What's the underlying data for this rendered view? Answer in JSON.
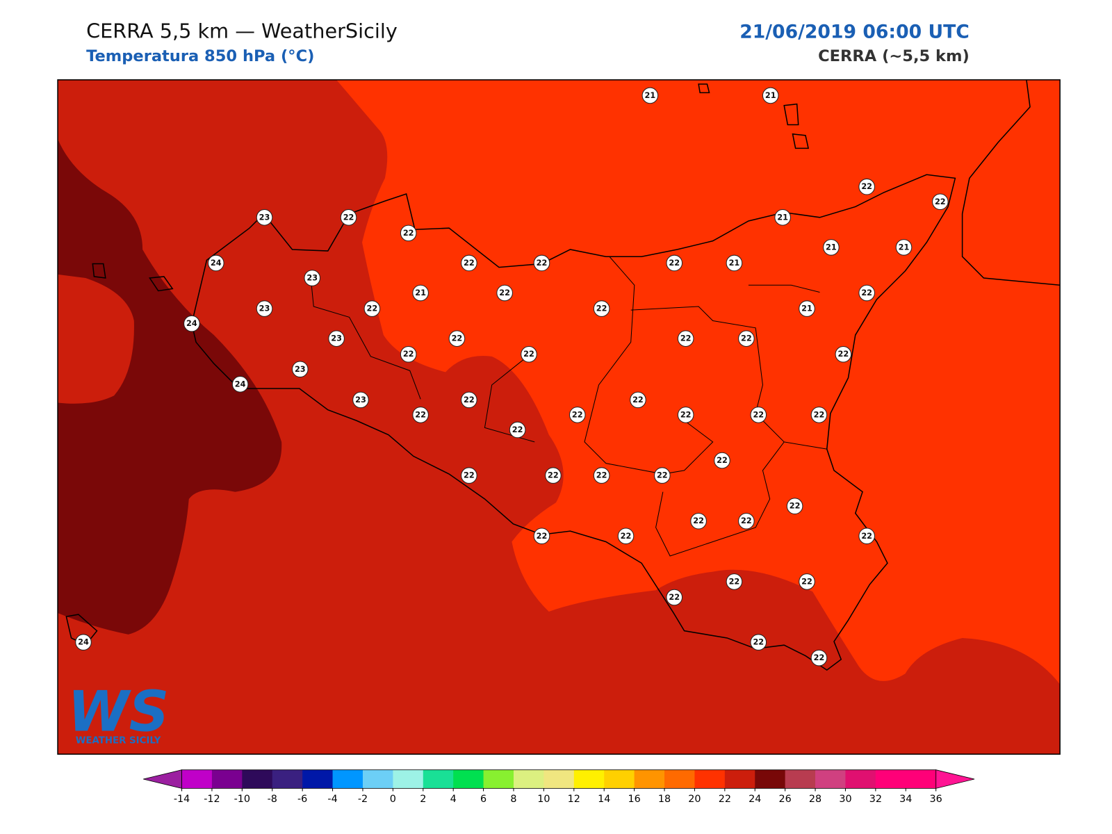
{
  "header": {
    "title": "CERRA 5,5 km — WeatherSicily",
    "subtitle": "Temperatura 850 hPa (°C)",
    "date": "21/06/2019 06:00 UTC",
    "source": "CERRA (~5,5 km)"
  },
  "stations": [
    21,
    21,
    22,
    22,
    23,
    22,
    22,
    21,
    24,
    22,
    22,
    22,
    21,
    21,
    21,
    23,
    21,
    22,
    22,
    23,
    22,
    22,
    21,
    24,
    23,
    22,
    22,
    22,
    22,
    22,
    22,
    23,
    24,
    23,
    22,
    22,
    22,
    22,
    22,
    22,
    22,
    22,
    22,
    22,
    22,
    22,
    22,
    22,
    22,
    22,
    22,
    22,
    22,
    22,
    22,
    22,
    22,
    22,
    24
  ],
  "colorbar": {
    "ticks": [
      -14,
      -12,
      -10,
      -8,
      -6,
      -4,
      -2,
      0,
      2,
      4,
      6,
      8,
      10,
      12,
      14,
      16,
      18,
      20,
      22,
      24,
      26,
      28,
      30,
      32,
      34,
      36
    ],
    "under": "#9b1fa0",
    "over": "#ff1493",
    "colors": [
      "#c000c8",
      "#7a0090",
      "#2e0a5a",
      "#3a2080",
      "#0018a8",
      "#0096ff",
      "#6ccff6",
      "#9df2e6",
      "#19e096",
      "#00e050",
      "#88f030",
      "#dcf080",
      "#f0e680",
      "#fff000",
      "#ffd000",
      "#ff9400",
      "#ff6a00",
      "#ff3200",
      "#cc1e0c",
      "#780808",
      "#b83c50",
      "#d04080",
      "#e01070",
      "#ff0078",
      "#ff0078"
    ]
  },
  "logo": {
    "mark": "WS",
    "name": "WEATHER SICILY"
  }
}
